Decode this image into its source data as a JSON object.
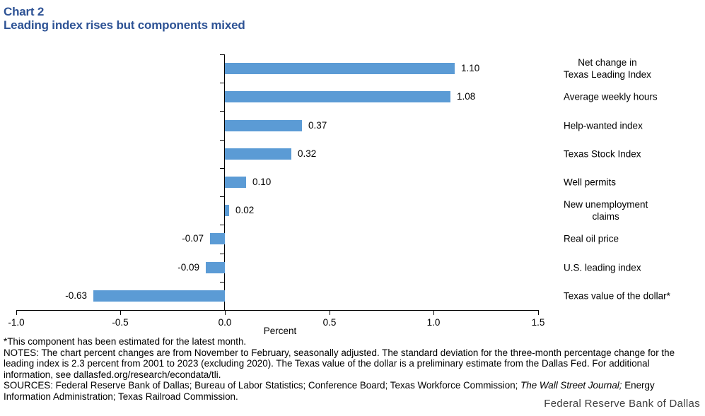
{
  "colors": {
    "title_accent": "#2E5395",
    "bar": "#5B9BD5",
    "axis": "#000000",
    "footer_text": "#404040"
  },
  "chart_data": {
    "type": "bar",
    "orientation": "horizontal",
    "chart_number": "Chart 2",
    "title": "Leading index rises but components mixed",
    "categories": [
      "Net change in\nTexas Leading Index",
      "Average weekly hours",
      "Help-wanted index",
      "Texas Stock Index",
      "Well permits",
      "New unemployment\nclaims",
      "Real oil price",
      "U.S. leading index",
      "Texas value of the dollar*"
    ],
    "values": [
      1.1,
      1.08,
      0.37,
      0.32,
      0.1,
      0.02,
      -0.07,
      -0.09,
      -0.63
    ],
    "value_labels": [
      "1.10",
      "1.08",
      "0.37",
      "0.32",
      "0.10",
      "0.02",
      "-0.07",
      "-0.09",
      "-0.63"
    ],
    "xlabel": "Percent",
    "xlim": [
      -1.0,
      1.5
    ],
    "x_ticks": [
      -1.0,
      -0.5,
      0.0,
      0.5,
      1.0,
      1.5
    ],
    "x_tick_labels": [
      "-1.0",
      "-0.5",
      "0.0",
      "0.5",
      "1.0",
      "1.5"
    ],
    "bar_color": "#5B9BD5",
    "grid": false,
    "legend": false
  },
  "notes": {
    "footnote": "*This component has been estimated for the latest month.",
    "notes": "NOTES: The chart percent changes are from November to February, seasonally adjusted. The standard deviation for the three-month percentage change for the leading index is 2.3 percent from 2001 to 2023 (excluding 2020). The Texas value of the dollar is a preliminary estimate from the Dallas Fed. For additional information, see dallasfed.org/research/econdata/tli.",
    "sources_before_italic": "SOURCES: Federal Reserve Bank of Dallas; Bureau of Labor Statistics; Conference Board; Texas Workforce Commission; ",
    "sources_italic": "The Wall Street Journal;",
    "sources_after_italic": " Energy Information Administration; Texas Railroad Commission."
  },
  "footer": {
    "organization": "Federal Reserve Bank of Dallas"
  }
}
